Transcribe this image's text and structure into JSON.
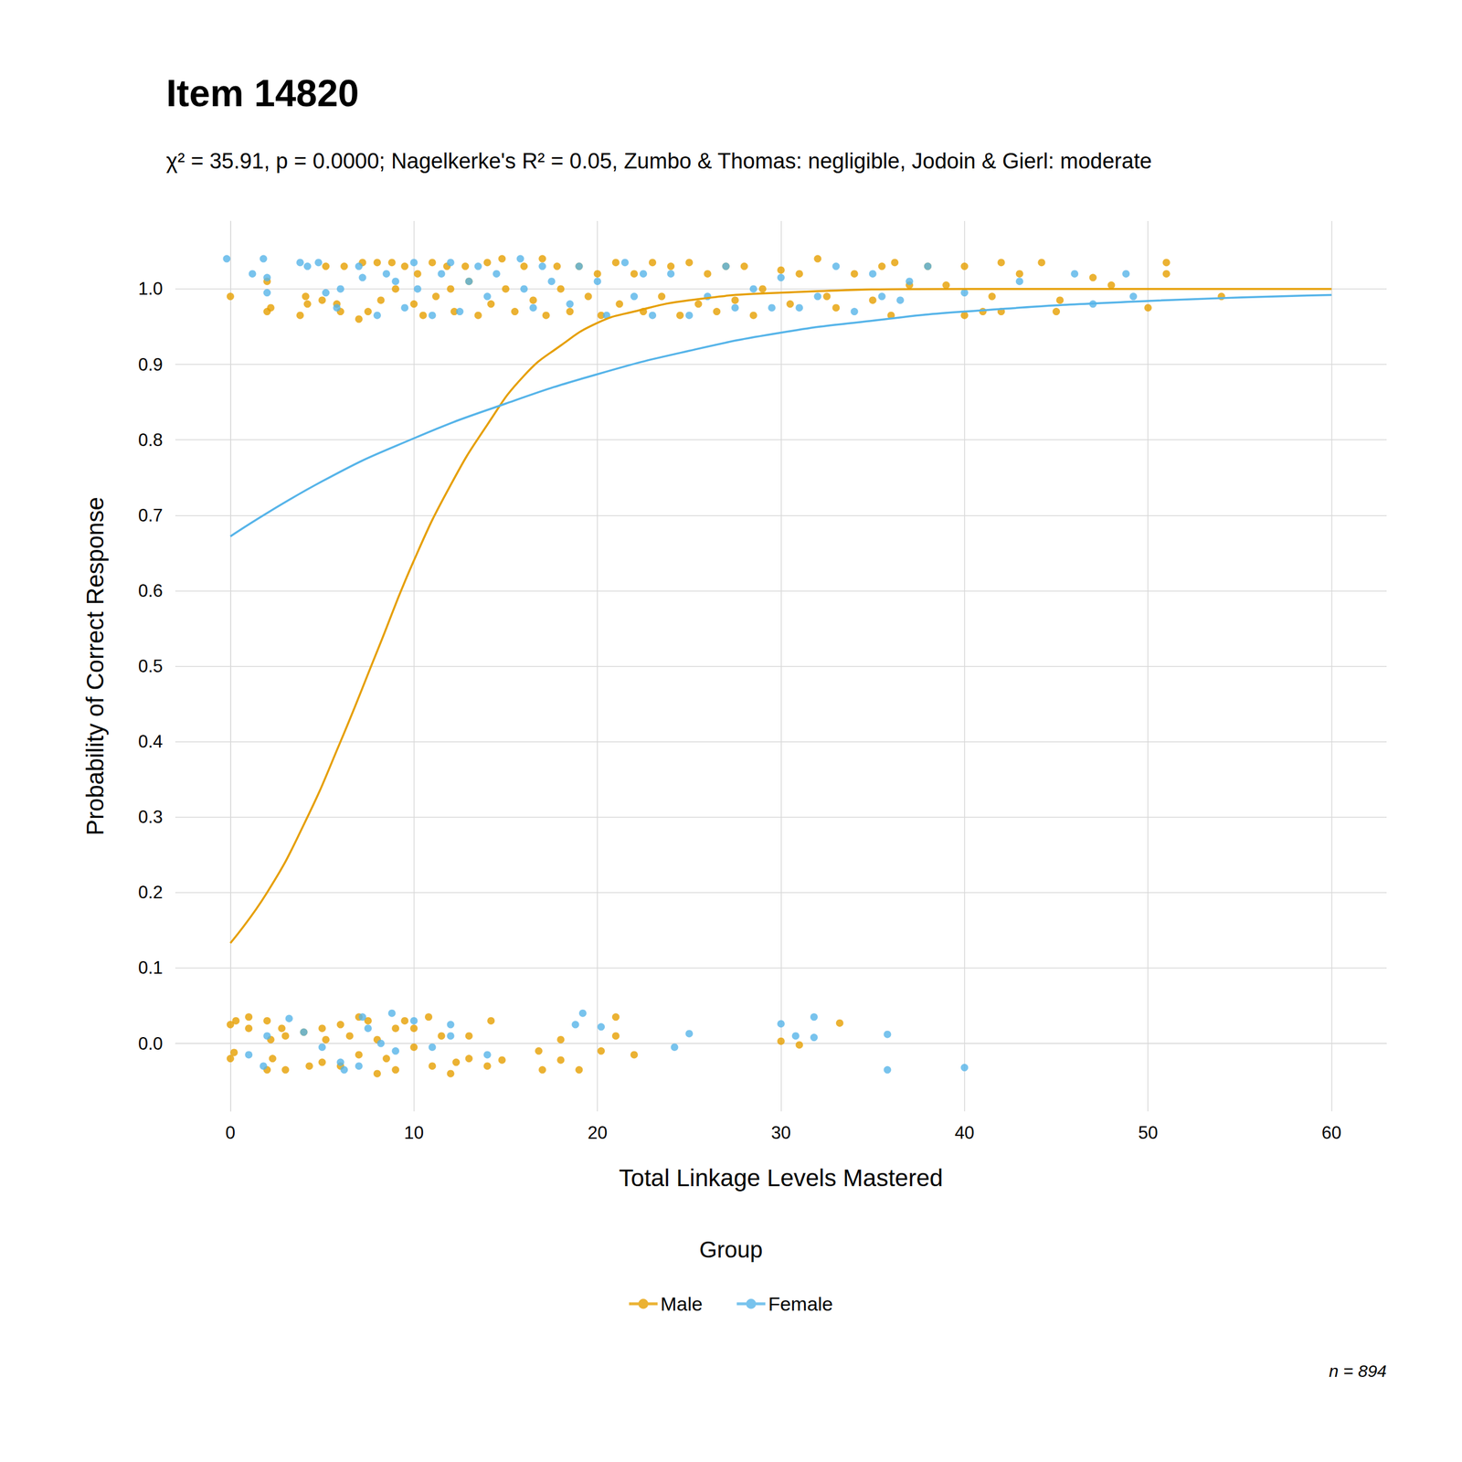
{
  "chart_data": {
    "type": "scatter",
    "title": "Item 14820",
    "subtitle": "χ² = 35.91, p = 0.0000; Nagelkerke's R² = 0.05, Zumbo & Thomas: negligible, Jodoin & Gierl: moderate",
    "x_label": "Total Linkage Levels Mastered",
    "y_label": "Probability of Correct Response",
    "legend_title": "Group",
    "annotation": "n = 894",
    "legend": "bottom",
    "grid": true,
    "xlim": [
      -3,
      63
    ],
    "xticks": [
      0,
      10,
      20,
      30,
      40,
      50,
      60
    ],
    "ylim": [
      -0.09,
      1.09
    ],
    "yticks": [
      {
        "value": 0,
        "label": "0.0"
      },
      0.1,
      0.2,
      0.3,
      0.4,
      0.5,
      0.6,
      0.7,
      0.8,
      0.9,
      {
        "value": 1,
        "label": "1.0"
      }
    ],
    "series": [
      {
        "name": "Male",
        "type": "scatter",
        "color": "#E69F00",
        "marker": "circle",
        "points": [
          [
            0,
            0.99
          ],
          [
            2,
            0.97
          ],
          [
            2.2,
            0.975
          ],
          [
            2,
            1.01
          ],
          [
            3.8,
            0.965
          ],
          [
            4.2,
            0.98
          ],
          [
            4.1,
            0.99
          ],
          [
            5,
            0.985
          ],
          [
            5.2,
            1.03
          ],
          [
            5.8,
            0.98
          ],
          [
            6,
            0.97
          ],
          [
            6.2,
            1.03
          ],
          [
            7,
            0.96
          ],
          [
            7.2,
            1.035
          ],
          [
            7.5,
            0.97
          ],
          [
            8,
            1.035
          ],
          [
            8.2,
            0.985
          ],
          [
            8.8,
            1.035
          ],
          [
            9,
            1.0
          ],
          [
            9.5,
            1.03
          ],
          [
            10,
            0.98
          ],
          [
            10.2,
            1.02
          ],
          [
            10.5,
            0.965
          ],
          [
            11,
            1.035
          ],
          [
            11.2,
            0.99
          ],
          [
            11.8,
            1.03
          ],
          [
            12,
            1.0
          ],
          [
            12.2,
            0.97
          ],
          [
            12.8,
            1.03
          ],
          [
            13,
            1.01
          ],
          [
            13.5,
            0.965
          ],
          [
            14,
            1.035
          ],
          [
            14.2,
            0.98
          ],
          [
            14.8,
            1.04
          ],
          [
            15,
            1.0
          ],
          [
            15.5,
            0.97
          ],
          [
            16,
            1.03
          ],
          [
            16.5,
            0.985
          ],
          [
            17,
            1.04
          ],
          [
            17.2,
            0.965
          ],
          [
            17.8,
            1.03
          ],
          [
            18,
            1.0
          ],
          [
            18.5,
            0.97
          ],
          [
            19,
            1.03
          ],
          [
            19.5,
            0.99
          ],
          [
            20,
            1.02
          ],
          [
            20.2,
            0.965
          ],
          [
            21,
            1.035
          ],
          [
            21.2,
            0.98
          ],
          [
            22,
            1.02
          ],
          [
            22.5,
            0.97
          ],
          [
            23,
            1.035
          ],
          [
            23.5,
            0.99
          ],
          [
            24,
            1.03
          ],
          [
            24.5,
            0.965
          ],
          [
            25,
            1.035
          ],
          [
            25.5,
            0.98
          ],
          [
            26,
            1.02
          ],
          [
            26.5,
            0.97
          ],
          [
            27,
            1.03
          ],
          [
            27.5,
            0.985
          ],
          [
            28,
            1.03
          ],
          [
            28.5,
            0.965
          ],
          [
            29,
            1.0
          ],
          [
            30,
            1.025
          ],
          [
            30.5,
            0.98
          ],
          [
            31,
            1.02
          ],
          [
            32,
            1.04
          ],
          [
            32.5,
            0.99
          ],
          [
            33,
            0.975
          ],
          [
            34,
            1.02
          ],
          [
            35,
            0.985
          ],
          [
            35.5,
            1.03
          ],
          [
            36,
            0.965
          ],
          [
            36.2,
            1.035
          ],
          [
            37,
            1.005
          ],
          [
            38,
            1.03
          ],
          [
            39,
            1.005
          ],
          [
            40,
            0.965
          ],
          [
            40,
            1.03
          ],
          [
            41,
            0.97
          ],
          [
            41.5,
            0.99
          ],
          [
            42,
            1.035
          ],
          [
            42,
            0.97
          ],
          [
            43,
            1.02
          ],
          [
            44.2,
            1.035
          ],
          [
            45,
            0.97
          ],
          [
            45.2,
            0.985
          ],
          [
            47,
            1.015
          ],
          [
            48,
            1.005
          ],
          [
            50,
            0.975
          ],
          [
            51,
            1.02
          ],
          [
            51,
            1.035
          ],
          [
            54,
            0.99
          ],
          [
            0,
            0.025
          ],
          [
            0,
            -0.02
          ],
          [
            0.3,
            0.03
          ],
          [
            0.2,
            -0.012
          ],
          [
            1,
            0.035
          ],
          [
            1,
            0.02
          ],
          [
            2,
            0.03
          ],
          [
            2,
            -0.035
          ],
          [
            2.2,
            0.005
          ],
          [
            2.3,
            -0.02
          ],
          [
            2.8,
            0.02
          ],
          [
            3,
            -0.035
          ],
          [
            3,
            0.01
          ],
          [
            4,
            0.015
          ],
          [
            4.3,
            -0.03
          ],
          [
            5,
            0.02
          ],
          [
            5,
            -0.025
          ],
          [
            5.2,
            0.005
          ],
          [
            6,
            0.025
          ],
          [
            6,
            -0.03
          ],
          [
            6.5,
            0.01
          ],
          [
            7,
            0.035
          ],
          [
            7,
            -0.015
          ],
          [
            7.5,
            0.03
          ],
          [
            8,
            -0.04
          ],
          [
            8,
            0.005
          ],
          [
            8.5,
            -0.02
          ],
          [
            9,
            0.02
          ],
          [
            9,
            -0.035
          ],
          [
            9.5,
            0.03
          ],
          [
            10,
            0.02
          ],
          [
            10,
            -0.005
          ],
          [
            10.8,
            0.035
          ],
          [
            11,
            -0.03
          ],
          [
            11.5,
            0.01
          ],
          [
            12,
            -0.04
          ],
          [
            12.3,
            -0.025
          ],
          [
            13,
            -0.02
          ],
          [
            13,
            0.01
          ],
          [
            14,
            -0.03
          ],
          [
            14.2,
            0.03
          ],
          [
            14.8,
            -0.022
          ],
          [
            16.8,
            -0.01
          ],
          [
            17,
            -0.035
          ],
          [
            18,
            0.005
          ],
          [
            18,
            -0.022
          ],
          [
            19,
            -0.035
          ],
          [
            20.2,
            -0.01
          ],
          [
            21,
            0.035
          ],
          [
            21,
            0.01
          ],
          [
            22,
            -0.015
          ],
          [
            30,
            0.003
          ],
          [
            31,
            -0.002
          ],
          [
            33.2,
            0.027
          ]
        ]
      },
      {
        "name": "Female",
        "type": "scatter",
        "color": "#56B4E9",
        "marker": "circle",
        "points": [
          [
            -0.2,
            1.04
          ],
          [
            1.2,
            1.02
          ],
          [
            1.8,
            1.04
          ],
          [
            2,
            0.995
          ],
          [
            2,
            1.015
          ],
          [
            3.8,
            1.035
          ],
          [
            4.2,
            1.03
          ],
          [
            4.8,
            1.035
          ],
          [
            5.2,
            0.995
          ],
          [
            5.8,
            0.975
          ],
          [
            6,
            1.0
          ],
          [
            7,
            1.03
          ],
          [
            7.2,
            1.015
          ],
          [
            8,
            0.965
          ],
          [
            8.5,
            1.02
          ],
          [
            9,
            1.01
          ],
          [
            9.5,
            0.975
          ],
          [
            10,
            1.035
          ],
          [
            10.2,
            1.0
          ],
          [
            11,
            0.965
          ],
          [
            11.5,
            1.02
          ],
          [
            12,
            1.035
          ],
          [
            12.5,
            0.97
          ],
          [
            13,
            1.01
          ],
          [
            13.5,
            1.03
          ],
          [
            14,
            0.99
          ],
          [
            14.5,
            1.02
          ],
          [
            15.8,
            1.04
          ],
          [
            16,
            1.0
          ],
          [
            16.5,
            0.975
          ],
          [
            17,
            1.03
          ],
          [
            17.5,
            1.01
          ],
          [
            18.5,
            0.98
          ],
          [
            19,
            1.03
          ],
          [
            20,
            1.01
          ],
          [
            20.5,
            0.965
          ],
          [
            21.5,
            1.035
          ],
          [
            22,
            0.99
          ],
          [
            22.5,
            1.02
          ],
          [
            23,
            0.965
          ],
          [
            24,
            1.02
          ],
          [
            25,
            0.965
          ],
          [
            26,
            0.99
          ],
          [
            27,
            1.03
          ],
          [
            27.5,
            0.975
          ],
          [
            28.5,
            1.0
          ],
          [
            29.5,
            0.975
          ],
          [
            30,
            1.015
          ],
          [
            31,
            0.975
          ],
          [
            32,
            0.99
          ],
          [
            33,
            1.03
          ],
          [
            34,
            0.97
          ],
          [
            35,
            1.02
          ],
          [
            35.5,
            0.99
          ],
          [
            36.5,
            0.985
          ],
          [
            37,
            1.01
          ],
          [
            38,
            1.03
          ],
          [
            40,
            0.995
          ],
          [
            43,
            1.01
          ],
          [
            46,
            1.02
          ],
          [
            47,
            0.98
          ],
          [
            48.8,
            1.02
          ],
          [
            49.2,
            0.99
          ],
          [
            1,
            -0.015
          ],
          [
            1.8,
            -0.03
          ],
          [
            2,
            0.01
          ],
          [
            3.2,
            0.033
          ],
          [
            4,
            0.015
          ],
          [
            5,
            -0.005
          ],
          [
            6,
            -0.025
          ],
          [
            6.2,
            -0.035
          ],
          [
            7,
            -0.03
          ],
          [
            7.2,
            0.035
          ],
          [
            7.5,
            0.02
          ],
          [
            8.2,
            0.0
          ],
          [
            8.8,
            0.04
          ],
          [
            9,
            -0.01
          ],
          [
            10,
            0.03
          ],
          [
            11,
            -0.005
          ],
          [
            12,
            0.025
          ],
          [
            12,
            0.01
          ],
          [
            14,
            -0.015
          ],
          [
            18.8,
            0.025
          ],
          [
            19.2,
            0.04
          ],
          [
            20.2,
            0.022
          ],
          [
            24.2,
            -0.005
          ],
          [
            25,
            0.013
          ],
          [
            30,
            0.026
          ],
          [
            30.8,
            0.01
          ],
          [
            31.8,
            0.035
          ],
          [
            31.8,
            0.008
          ],
          [
            35.8,
            0.012
          ],
          [
            35.8,
            -0.035
          ],
          [
            40,
            -0.032
          ]
        ]
      },
      {
        "name": "Male",
        "type": "line",
        "color": "#E69F00",
        "line_style": "solid",
        "x": [
          0,
          2,
          4,
          6,
          8,
          10,
          12,
          14,
          16,
          18,
          20,
          22,
          25,
          30,
          40,
          60
        ],
        "values": [
          0.133,
          0.2,
          0.29,
          0.4,
          0.52,
          0.64,
          0.74,
          0.82,
          0.885,
          0.925,
          0.955,
          0.97,
          0.985,
          0.995,
          1.0,
          1.0
        ]
      },
      {
        "name": "Female",
        "type": "line",
        "color": "#56B4E9",
        "line_style": "solid",
        "x": [
          0,
          5,
          10,
          15,
          20,
          25,
          30,
          35,
          40,
          50,
          60
        ],
        "values": [
          0.672,
          0.745,
          0.802,
          0.848,
          0.887,
          0.918,
          0.942,
          0.958,
          0.97,
          0.984,
          0.992
        ]
      }
    ]
  }
}
